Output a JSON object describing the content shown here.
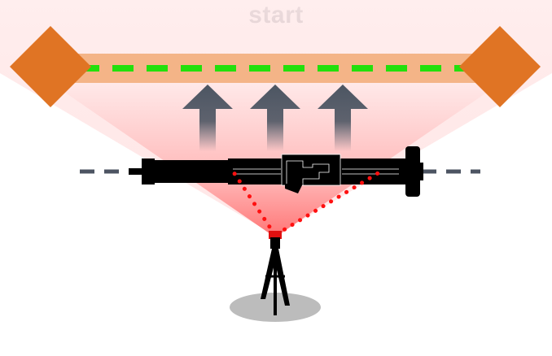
{
  "title": "start",
  "colors": {
    "target_marker": "#e07424",
    "target_band": "#f4b487",
    "target_line": "#22e00c",
    "beam_fill": "#ff7a7a",
    "arrow": "#4c5562",
    "axis_line": "#4d5462",
    "laser_dots": "#ff1010",
    "device": "#000000",
    "tripod_shadow": "#bcbcbc",
    "background": "#ffffff"
  },
  "icons": {
    "left_marker": "diamond-icon",
    "right_marker": "diamond-icon",
    "arrows": "up-arrow-icon",
    "device": "rifle-scope-icon",
    "laser": "laser-emitter-icon",
    "tripod": "tripod-icon"
  },
  "arrow_count": 3
}
